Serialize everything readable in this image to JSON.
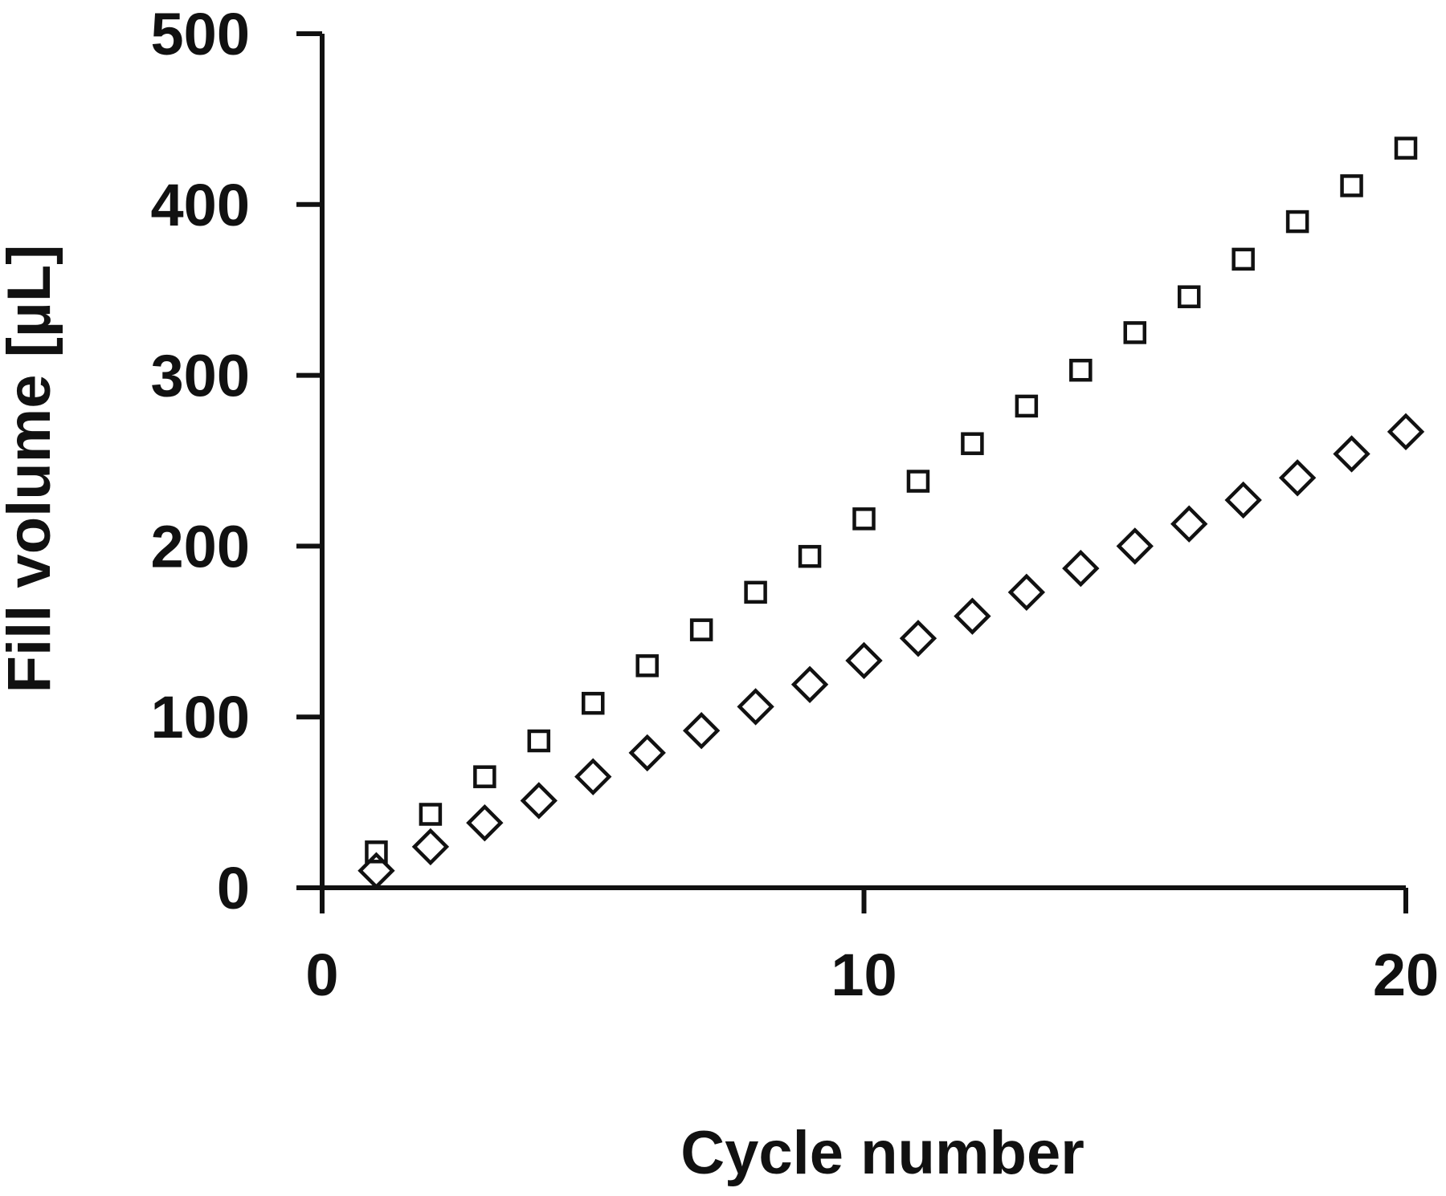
{
  "chart_data": {
    "type": "scatter",
    "title": "",
    "xlabel": "Cycle number",
    "ylabel": "Fill volume [µL]",
    "xlim": [
      0,
      20
    ],
    "ylim": [
      0,
      500
    ],
    "xticks": [
      0,
      10,
      20
    ],
    "yticks": [
      0,
      100,
      200,
      300,
      400,
      500
    ],
    "grid": false,
    "legend": "none",
    "series": [
      {
        "marker": "square",
        "marker_style": "hollow",
        "color": "#111111",
        "x": [
          1,
          2,
          3,
          4,
          5,
          6,
          7,
          8,
          9,
          10,
          11,
          12,
          13,
          14,
          15,
          16,
          17,
          18,
          19,
          20
        ],
        "y": [
          21,
          43,
          65,
          86,
          108,
          130,
          151,
          173,
          194,
          216,
          238,
          260,
          282,
          303,
          325,
          346,
          368,
          390,
          411,
          433
        ]
      },
      {
        "marker": "diamond",
        "marker_style": "hollow",
        "color": "#111111",
        "x": [
          1,
          2,
          3,
          4,
          5,
          6,
          7,
          8,
          9,
          10,
          11,
          12,
          13,
          14,
          15,
          16,
          17,
          18,
          19,
          20
        ],
        "y": [
          10,
          24,
          38,
          51,
          65,
          79,
          92,
          106,
          119,
          133,
          146,
          159,
          173,
          187,
          200,
          213,
          227,
          240,
          254,
          267
        ]
      }
    ]
  }
}
